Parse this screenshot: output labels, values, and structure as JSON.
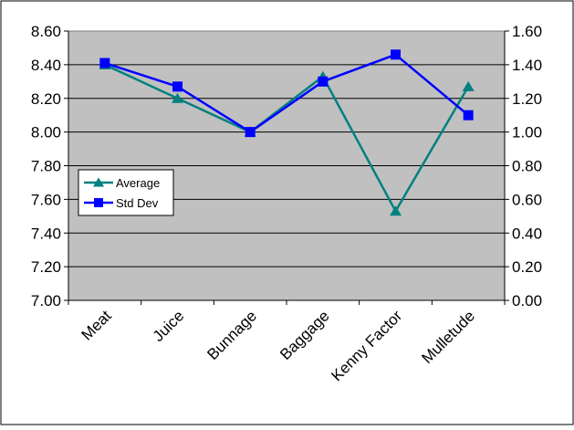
{
  "chart_data": {
    "type": "line",
    "title": "",
    "xlabel": "",
    "ylabel": "",
    "categories": [
      "Meat",
      "Juice",
      "Bunnage",
      "Baggage",
      "Kenny Factor",
      "Mulletude"
    ],
    "left_axis": {
      "ylim": [
        7.0,
        8.6
      ],
      "ticks": [
        "7.00",
        "7.20",
        "7.40",
        "7.60",
        "7.80",
        "8.00",
        "8.20",
        "8.40",
        "8.60"
      ]
    },
    "right_axis": {
      "ylim": [
        0.0,
        1.6
      ],
      "ticks": [
        "0.00",
        "0.20",
        "0.40",
        "0.60",
        "0.80",
        "1.00",
        "1.20",
        "1.40",
        "1.60"
      ]
    },
    "series": [
      {
        "name": "Average",
        "axis": "left",
        "marker": "triangle",
        "color": "#008080",
        "values": [
          8.4,
          8.2,
          8.0,
          8.33,
          7.53,
          8.27
        ]
      },
      {
        "name": "Std Dev",
        "axis": "right",
        "marker": "square",
        "color": "#0000FF",
        "values": [
          1.41,
          1.27,
          1.0,
          1.3,
          1.46,
          1.1
        ]
      }
    ],
    "legend": {
      "position": "left-middle",
      "entries": [
        "Average",
        "Std Dev"
      ]
    },
    "grid": true,
    "colors": {
      "plot_background": "#C0C0C0",
      "gridline": "#000000",
      "outer_border": "#000000"
    }
  }
}
